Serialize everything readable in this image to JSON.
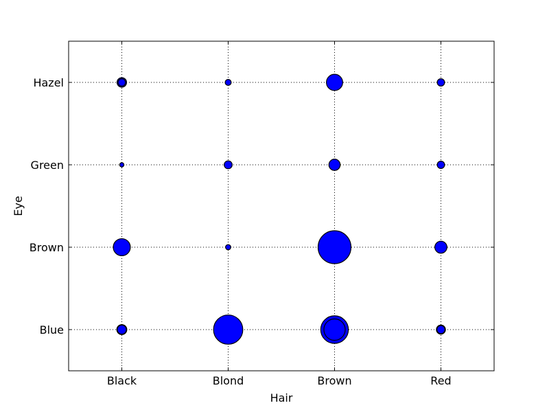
{
  "chart_data": {
    "type": "scatter",
    "title": "",
    "xlabel": "Hair",
    "ylabel": "Eye",
    "x_categories": [
      "Black",
      "Blond",
      "Brown",
      "Red"
    ],
    "y_categories": [
      "Blue",
      "Brown",
      "Green",
      "Hazel"
    ],
    "grid": true,
    "marker_color": "#0000ff",
    "marker_edge_color": "#000000",
    "points": [
      {
        "x": "Black",
        "y": "Blue",
        "size": 9
      },
      {
        "x": "Black",
        "y": "Blue",
        "size": 11
      },
      {
        "x": "Black",
        "y": "Brown",
        "size": 32
      },
      {
        "x": "Black",
        "y": "Green",
        "size": 2
      },
      {
        "x": "Black",
        "y": "Hazel",
        "size": 10
      },
      {
        "x": "Black",
        "y": "Hazel",
        "size": 6
      },
      {
        "x": "Blond",
        "y": "Blue",
        "size": 94
      },
      {
        "x": "Blond",
        "y": "Brown",
        "size": 3
      },
      {
        "x": "Blond",
        "y": "Green",
        "size": 7
      },
      {
        "x": "Blond",
        "y": "Hazel",
        "size": 4
      },
      {
        "x": "Brown",
        "y": "Blue",
        "size": 84
      },
      {
        "x": "Brown",
        "y": "Blue",
        "size": 50
      },
      {
        "x": "Brown",
        "y": "Brown",
        "size": 119
      },
      {
        "x": "Brown",
        "y": "Green",
        "size": 14
      },
      {
        "x": "Brown",
        "y": "Hazel",
        "size": 29
      },
      {
        "x": "Red",
        "y": "Blue",
        "size": 9
      },
      {
        "x": "Red",
        "y": "Blue",
        "size": 7
      },
      {
        "x": "Red",
        "y": "Brown",
        "size": 16
      },
      {
        "x": "Red",
        "y": "Green",
        "size": 6
      },
      {
        "x": "Red",
        "y": "Hazel",
        "size": 6
      }
    ]
  }
}
